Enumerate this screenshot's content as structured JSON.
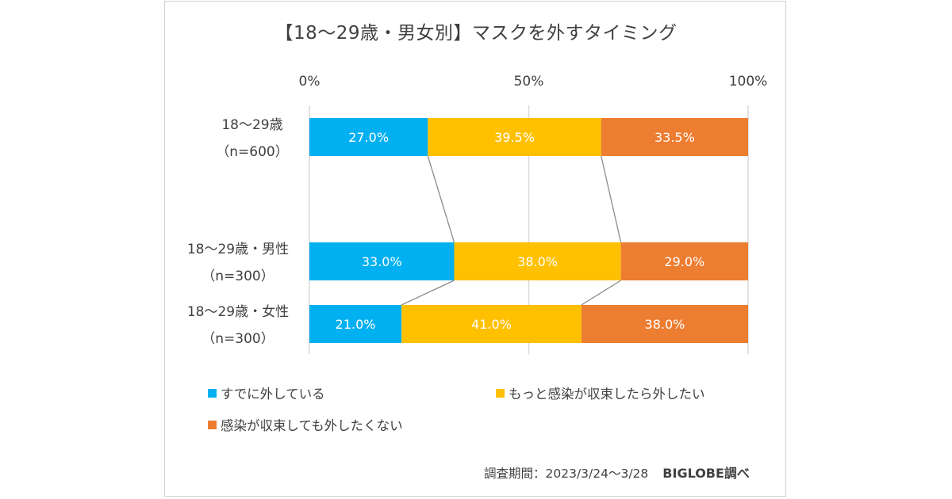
{
  "chart_data": {
    "type": "bar",
    "orientation": "horizontal",
    "stacked": "percent",
    "title": "【18〜29歳・男女別】マスクを外すタイミング",
    "xlabel": "",
    "ylabel": "",
    "xlim": [
      0,
      100
    ],
    "x_ticks": [
      "0%",
      "50%",
      "100%"
    ],
    "x_tick_values": [
      0,
      50,
      100
    ],
    "grid": true,
    "categories": [
      {
        "line1": "18〜29歳",
        "line2": "（n=600）"
      },
      {
        "line1": "18〜29歳・男性",
        "line2": "（n=300）"
      },
      {
        "line1": "18〜29歳・女性",
        "line2": "（n=300）"
      }
    ],
    "series": [
      {
        "name": "すでに外している",
        "color": "#00b0f0",
        "values": [
          27.0,
          33.0,
          21.0
        ],
        "labels": [
          "27.0%",
          "33.0%",
          "21.0%"
        ]
      },
      {
        "name": "もっと感染が収束したら外したい",
        "color": "#ffc000",
        "values": [
          39.5,
          38.0,
          41.0
        ],
        "labels": [
          "39.5%",
          "38.0%",
          "41.0%"
        ]
      },
      {
        "name": "感染が収束しても外したくない",
        "color": "#ed7d31",
        "values": [
          33.5,
          29.0,
          38.0
        ],
        "labels": [
          "33.5%",
          "29.0%",
          "38.0%"
        ]
      }
    ],
    "series_lines": true,
    "legend_position": "bottom",
    "annotations": {
      "survey_period": "調査期間：2023/3/24〜3/28",
      "source": "BIGLOBE調べ"
    }
  }
}
